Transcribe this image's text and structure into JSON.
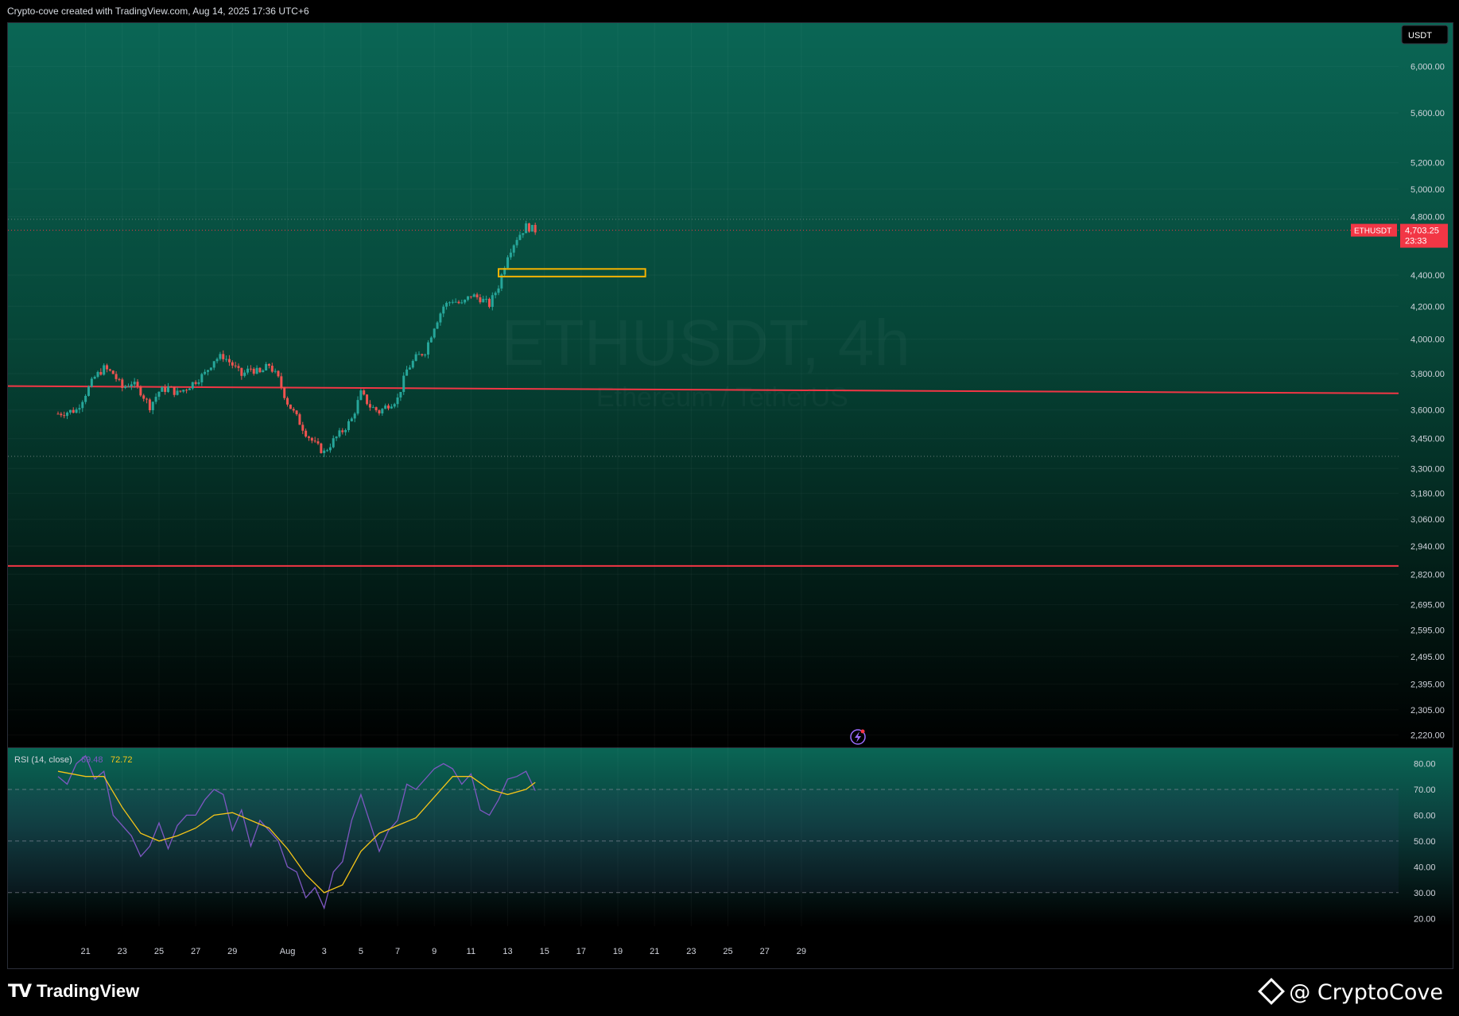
{
  "header": {
    "attribution": "Crypto-cove created with TradingView.com, Aug 14, 2025 17:36 UTC+6"
  },
  "watermark": {
    "symbol": "ETHUSDT, 4h",
    "description": "Ethereum / TetherUS"
  },
  "colors": {
    "up": "#26a69a",
    "down": "#ef5350",
    "line_red": "#f23645",
    "rsi_line": "#7e57c2",
    "rsi_ma": "#f5c518",
    "zone": "#f5b300"
  },
  "price_axis": {
    "currency_label": "USDT",
    "labels": [
      "6,000.00",
      "5,600.00",
      "5,200.00",
      "5,000.00",
      "4,800.00",
      "4,400.00",
      "4,200.00",
      "4,000.00",
      "3,800.00",
      "3,600.00",
      "3,450.00",
      "3,300.00",
      "3,180.00",
      "3,060.00",
      "2,940.00",
      "2,820.00",
      "2,695.00",
      "2,595.00",
      "2,495.00",
      "2,395.00",
      "2,305.00",
      "2,220.00"
    ],
    "last_price_symbol": "ETHUSDT",
    "last_price": "4,703.25",
    "countdown": "23:33"
  },
  "rsi": {
    "title": "RSI (14, close)",
    "value": "69.48",
    "ma_value": "72.72",
    "labels": [
      "80.00",
      "70.00",
      "60.00",
      "50.00",
      "40.00",
      "30.00",
      "20.00"
    ]
  },
  "time_axis": {
    "labels": [
      "21",
      "23",
      "25",
      "27",
      "29",
      "Aug",
      "3",
      "5",
      "7",
      "9",
      "11",
      "13",
      "15",
      "17",
      "19",
      "21",
      "23",
      "25",
      "27",
      "29"
    ]
  },
  "chart_data": {
    "type": "candlestick",
    "timeframe": "4h",
    "symbol": "ETHUSDT",
    "y_scale": "log",
    "ylim": [
      2180,
      6400
    ],
    "x_range": [
      "2025-07-19T12:00",
      "2025-07-31T12:00"
    ],
    "candle_x_range": [
      "2025-07-19T12:00",
      "2025-08-14T12:00"
    ],
    "price_path": [
      [
        "2025-07-19T12:00",
        3580
      ],
      [
        "2025-07-20T12:00",
        3600
      ],
      [
        "2025-07-21T00:00",
        3690
      ],
      [
        "2025-07-21T12:00",
        3780
      ],
      [
        "2025-07-22T00:00",
        3830
      ],
      [
        "2025-07-22T12:00",
        3800
      ],
      [
        "2025-07-23T00:00",
        3720
      ],
      [
        "2025-07-23T12:00",
        3750
      ],
      [
        "2025-07-24T00:00",
        3700
      ],
      [
        "2025-07-24T12:00",
        3620
      ],
      [
        "2025-07-25T00:00",
        3700
      ],
      [
        "2025-07-25T12:00",
        3720
      ],
      [
        "2025-07-26T00:00",
        3690
      ],
      [
        "2025-07-26T12:00",
        3720
      ],
      [
        "2025-07-27T00:00",
        3760
      ],
      [
        "2025-07-27T12:00",
        3800
      ],
      [
        "2025-07-28T00:00",
        3880
      ],
      [
        "2025-07-28T12:00",
        3900
      ],
      [
        "2025-07-29T00:00",
        3850
      ],
      [
        "2025-07-29T12:00",
        3790
      ],
      [
        "2025-07-30T00:00",
        3830
      ],
      [
        "2025-07-30T12:00",
        3800
      ],
      [
        "2025-07-31T00:00",
        3850
      ],
      [
        "2025-07-31T12:00",
        3770
      ],
      [
        "2025-08-01T00:00",
        3640
      ],
      [
        "2025-08-01T12:00",
        3560
      ],
      [
        "2025-08-02T00:00",
        3480
      ],
      [
        "2025-08-02T12:00",
        3420
      ],
      [
        "2025-08-03T00:00",
        3380
      ],
      [
        "2025-08-03T12:00",
        3440
      ],
      [
        "2025-08-04T00:00",
        3490
      ],
      [
        "2025-08-04T12:00",
        3550
      ],
      [
        "2025-08-05T00:00",
        3690
      ],
      [
        "2025-08-05T12:00",
        3620
      ],
      [
        "2025-08-06T00:00",
        3590
      ],
      [
        "2025-08-06T12:00",
        3630
      ],
      [
        "2025-08-07T00:00",
        3660
      ],
      [
        "2025-08-07T12:00",
        3820
      ],
      [
        "2025-08-08T00:00",
        3890
      ],
      [
        "2025-08-08T12:00",
        3930
      ],
      [
        "2025-08-09T00:00",
        4080
      ],
      [
        "2025-08-09T12:00",
        4200
      ],
      [
        "2025-08-10T00:00",
        4240
      ],
      [
        "2025-08-10T12:00",
        4210
      ],
      [
        "2025-08-11T00:00",
        4270
      ],
      [
        "2025-08-11T12:00",
        4250
      ],
      [
        "2025-08-12T00:00",
        4210
      ],
      [
        "2025-08-12T12:00",
        4330
      ],
      [
        "2025-08-13T00:00",
        4540
      ],
      [
        "2025-08-13T12:00",
        4650
      ],
      [
        "2025-08-14T00:00",
        4730
      ],
      [
        "2025-08-14T12:00",
        4703.25
      ]
    ],
    "horizontal_lines": [
      {
        "price": 3730,
        "end_price": 3690,
        "color": "#f23645",
        "style": "solid"
      },
      {
        "price": 2855,
        "color": "#f23645",
        "style": "solid"
      },
      {
        "price": 4780,
        "color": "#6b7c7a",
        "style": "dotted"
      },
      {
        "price": 3360,
        "color": "#6b7c7a",
        "style": "dotted"
      }
    ],
    "zone": {
      "price_top": 4440,
      "price_bottom": 4390,
      "start": "2025-08-12T12:00",
      "end": "2025-08-20T12:00"
    },
    "rsi_ylim": [
      17,
      86
    ],
    "rsi_levels": [
      70,
      50,
      30
    ],
    "rsi_path": [
      [
        "2025-07-19T12:00",
        75
      ],
      [
        "2025-07-20T00:00",
        72
      ],
      [
        "2025-07-20T12:00",
        80
      ],
      [
        "2025-07-21T00:00",
        83
      ],
      [
        "2025-07-21T12:00",
        74
      ],
      [
        "2025-07-22T00:00",
        77
      ],
      [
        "2025-07-22T12:00",
        60
      ],
      [
        "2025-07-23T00:00",
        56
      ],
      [
        "2025-07-23T12:00",
        52
      ],
      [
        "2025-07-24T00:00",
        44
      ],
      [
        "2025-07-24T12:00",
        48
      ],
      [
        "2025-07-25T00:00",
        57
      ],
      [
        "2025-07-25T12:00",
        47
      ],
      [
        "2025-07-26T00:00",
        56
      ],
      [
        "2025-07-26T12:00",
        60
      ],
      [
        "2025-07-27T00:00",
        60
      ],
      [
        "2025-07-27T12:00",
        66
      ],
      [
        "2025-07-28T00:00",
        70
      ],
      [
        "2025-07-28T12:00",
        68
      ],
      [
        "2025-07-29T00:00",
        54
      ],
      [
        "2025-07-29T12:00",
        62
      ],
      [
        "2025-07-30T00:00",
        48
      ],
      [
        "2025-07-30T12:00",
        58
      ],
      [
        "2025-07-31T00:00",
        54
      ],
      [
        "2025-07-31T12:00",
        50
      ],
      [
        "2025-08-01T00:00",
        40
      ],
      [
        "2025-08-01T12:00",
        38
      ],
      [
        "2025-08-02T00:00",
        28
      ],
      [
        "2025-08-02T12:00",
        32
      ],
      [
        "2025-08-03T00:00",
        24
      ],
      [
        "2025-08-03T12:00",
        38
      ],
      [
        "2025-08-04T00:00",
        42
      ],
      [
        "2025-08-04T12:00",
        58
      ],
      [
        "2025-08-05T00:00",
        68
      ],
      [
        "2025-08-05T12:00",
        57
      ],
      [
        "2025-08-06T00:00",
        46
      ],
      [
        "2025-08-06T12:00",
        54
      ],
      [
        "2025-08-07T00:00",
        58
      ],
      [
        "2025-08-07T12:00",
        72
      ],
      [
        "2025-08-08T00:00",
        70
      ],
      [
        "2025-08-08T12:00",
        74
      ],
      [
        "2025-08-09T00:00",
        78
      ],
      [
        "2025-08-09T12:00",
        80
      ],
      [
        "2025-08-10T00:00",
        78
      ],
      [
        "2025-08-10T12:00",
        72
      ],
      [
        "2025-08-11T00:00",
        76
      ],
      [
        "2025-08-11T12:00",
        62
      ],
      [
        "2025-08-12T00:00",
        60
      ],
      [
        "2025-08-12T12:00",
        66
      ],
      [
        "2025-08-13T00:00",
        74
      ],
      [
        "2025-08-13T12:00",
        75
      ],
      [
        "2025-08-14T00:00",
        77
      ],
      [
        "2025-08-14T12:00",
        69.48
      ]
    ],
    "rsi_ma_path": [
      [
        "2025-07-19T12:00",
        77
      ],
      [
        "2025-07-21T00:00",
        75
      ],
      [
        "2025-07-22T00:00",
        75
      ],
      [
        "2025-07-23T00:00",
        63
      ],
      [
        "2025-07-24T00:00",
        53
      ],
      [
        "2025-07-25T00:00",
        50
      ],
      [
        "2025-07-26T00:00",
        52
      ],
      [
        "2025-07-27T00:00",
        55
      ],
      [
        "2025-07-28T00:00",
        60
      ],
      [
        "2025-07-29T00:00",
        61
      ],
      [
        "2025-07-30T00:00",
        58
      ],
      [
        "2025-07-31T00:00",
        55
      ],
      [
        "2025-08-01T00:00",
        47
      ],
      [
        "2025-08-02T00:00",
        37
      ],
      [
        "2025-08-03T00:00",
        30
      ],
      [
        "2025-08-04T00:00",
        33
      ],
      [
        "2025-08-05T00:00",
        46
      ],
      [
        "2025-08-06T00:00",
        53
      ],
      [
        "2025-08-07T00:00",
        56
      ],
      [
        "2025-08-08T00:00",
        59
      ],
      [
        "2025-08-09T00:00",
        67
      ],
      [
        "2025-08-10T00:00",
        75
      ],
      [
        "2025-08-11T00:00",
        75
      ],
      [
        "2025-08-12T00:00",
        70
      ],
      [
        "2025-08-13T00:00",
        68
      ],
      [
        "2025-08-14T00:00",
        70
      ],
      [
        "2025-08-14T12:00",
        72.72
      ]
    ]
  },
  "footer": {
    "brand": "TradingView",
    "author": "@ CryptoCove"
  }
}
